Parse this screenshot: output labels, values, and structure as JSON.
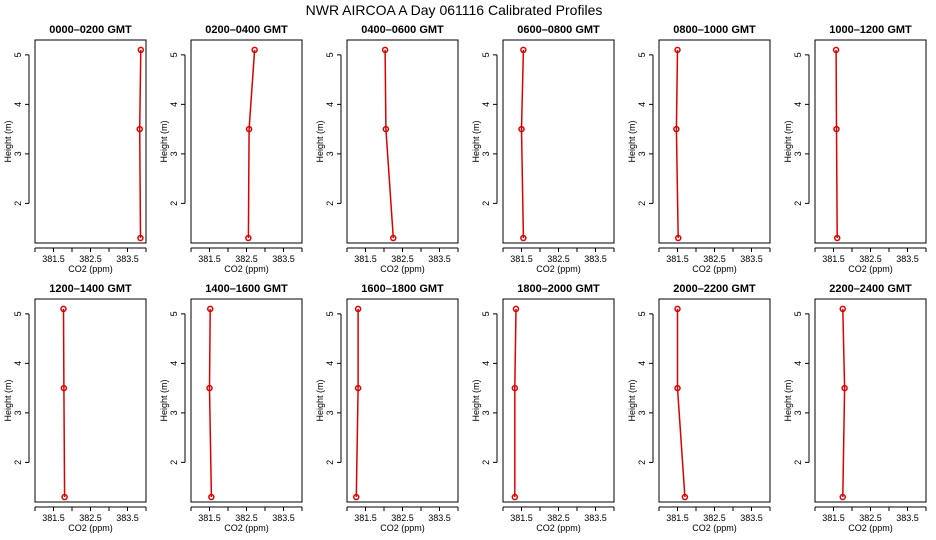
{
  "figure": {
    "title": "NWR AIRCOA A  Day 061116  Calibrated Profiles"
  },
  "chart_data": [
    {
      "type": "line",
      "title": "0000–0200 GMT",
      "xlabel": "CO2 (ppm)",
      "ylabel": "Height (m)",
      "xlim": [
        381.0,
        384.0
      ],
      "ylim": [
        1.2,
        5.3
      ],
      "xticks": [
        381.5,
        382.5,
        383.5
      ],
      "yticks": [
        2,
        3,
        4,
        5
      ],
      "series": [
        {
          "x": [
            383.85,
            383.83,
            383.86
          ],
          "y": [
            1.3,
            3.5,
            5.1
          ]
        }
      ]
    },
    {
      "type": "line",
      "title": "0200–0400 GMT",
      "xlabel": "CO2 (ppm)",
      "ylabel": "Height (m)",
      "xlim": [
        381.0,
        384.0
      ],
      "ylim": [
        1.2,
        5.3
      ],
      "xticks": [
        381.5,
        382.5,
        383.5
      ],
      "yticks": [
        2,
        3,
        4,
        5
      ],
      "series": [
        {
          "x": [
            382.55,
            382.57,
            382.72
          ],
          "y": [
            1.3,
            3.5,
            5.1
          ]
        }
      ]
    },
    {
      "type": "line",
      "title": "0400–0600 GMT",
      "xlabel": "CO2 (ppm)",
      "ylabel": "Height (m)",
      "xlim": [
        381.0,
        384.0
      ],
      "ylim": [
        1.2,
        5.3
      ],
      "xticks": [
        381.5,
        382.5,
        383.5
      ],
      "yticks": [
        2,
        3,
        4,
        5
      ],
      "series": [
        {
          "x": [
            382.25,
            382.05,
            382.03
          ],
          "y": [
            1.3,
            3.5,
            5.1
          ]
        }
      ]
    },
    {
      "type": "line",
      "title": "0600–0800 GMT",
      "xlabel": "CO2 (ppm)",
      "ylabel": "Height (m)",
      "xlim": [
        381.0,
        384.0
      ],
      "ylim": [
        1.2,
        5.3
      ],
      "xticks": [
        381.5,
        382.5,
        383.5
      ],
      "yticks": [
        2,
        3,
        4,
        5
      ],
      "series": [
        {
          "x": [
            381.55,
            381.5,
            381.55
          ],
          "y": [
            1.3,
            3.5,
            5.1
          ]
        }
      ]
    },
    {
      "type": "line",
      "title": "0800–1000 GMT",
      "xlabel": "CO2 (ppm)",
      "ylabel": "Height (m)",
      "xlim": [
        381.0,
        384.0
      ],
      "ylim": [
        1.2,
        5.3
      ],
      "xticks": [
        381.5,
        382.5,
        383.5
      ],
      "yticks": [
        2,
        3,
        4,
        5
      ],
      "series": [
        {
          "x": [
            381.52,
            381.47,
            381.5
          ],
          "y": [
            1.3,
            3.5,
            5.1
          ]
        }
      ]
    },
    {
      "type": "line",
      "title": "1000–1200 GMT",
      "xlabel": "CO2 (ppm)",
      "ylabel": "Height (m)",
      "xlim": [
        381.0,
        384.0
      ],
      "ylim": [
        1.2,
        5.3
      ],
      "xticks": [
        381.5,
        382.5,
        383.5
      ],
      "yticks": [
        2,
        3,
        4,
        5
      ],
      "series": [
        {
          "x": [
            381.6,
            381.58,
            381.57
          ],
          "y": [
            1.3,
            3.5,
            5.1
          ]
        }
      ]
    },
    {
      "type": "line",
      "title": "1200–1400 GMT",
      "xlabel": "CO2 (ppm)",
      "ylabel": "Height (m)",
      "xlim": [
        381.0,
        384.0
      ],
      "ylim": [
        1.2,
        5.3
      ],
      "xticks": [
        381.5,
        382.5,
        383.5
      ],
      "yticks": [
        2,
        3,
        4,
        5
      ],
      "series": [
        {
          "x": [
            381.8,
            381.78,
            381.77
          ],
          "y": [
            1.3,
            3.5,
            5.1
          ]
        }
      ]
    },
    {
      "type": "line",
      "title": "1400–1600 GMT",
      "xlabel": "CO2 (ppm)",
      "ylabel": "Height (m)",
      "xlim": [
        381.0,
        384.0
      ],
      "ylim": [
        1.2,
        5.3
      ],
      "xticks": [
        381.5,
        382.5,
        383.5
      ],
      "yticks": [
        2,
        3,
        4,
        5
      ],
      "series": [
        {
          "x": [
            381.55,
            381.5,
            381.52
          ],
          "y": [
            1.3,
            3.5,
            5.1
          ]
        }
      ]
    },
    {
      "type": "line",
      "title": "1600–1800 GMT",
      "xlabel": "CO2 (ppm)",
      "ylabel": "Height (m)",
      "xlim": [
        381.0,
        384.0
      ],
      "ylim": [
        1.2,
        5.3
      ],
      "xticks": [
        381.5,
        382.5,
        383.5
      ],
      "yticks": [
        2,
        3,
        4,
        5
      ],
      "series": [
        {
          "x": [
            381.25,
            381.3,
            381.3
          ],
          "y": [
            1.3,
            3.5,
            5.1
          ]
        }
      ]
    },
    {
      "type": "line",
      "title": "1800–2000 GMT",
      "xlabel": "CO2 (ppm)",
      "ylabel": "Height (m)",
      "xlim": [
        381.0,
        384.0
      ],
      "ylim": [
        1.2,
        5.3
      ],
      "xticks": [
        381.5,
        382.5,
        383.5
      ],
      "yticks": [
        2,
        3,
        4,
        5
      ],
      "series": [
        {
          "x": [
            381.32,
            381.32,
            381.35
          ],
          "y": [
            1.3,
            3.5,
            5.1
          ]
        }
      ]
    },
    {
      "type": "line",
      "title": "2000–2200 GMT",
      "xlabel": "CO2 (ppm)",
      "ylabel": "Height (m)",
      "xlim": [
        381.0,
        384.0
      ],
      "ylim": [
        1.2,
        5.3
      ],
      "xticks": [
        381.5,
        382.5,
        383.5
      ],
      "yticks": [
        2,
        3,
        4,
        5
      ],
      "series": [
        {
          "x": [
            381.7,
            381.5,
            381.5
          ],
          "y": [
            1.3,
            3.5,
            5.1
          ]
        }
      ]
    },
    {
      "type": "line",
      "title": "2200–2400 GMT",
      "xlabel": "CO2 (ppm)",
      "ylabel": "Height (m)",
      "xlim": [
        381.0,
        384.0
      ],
      "ylim": [
        1.2,
        5.3
      ],
      "xticks": [
        381.5,
        382.5,
        383.5
      ],
      "yticks": [
        2,
        3,
        4,
        5
      ],
      "series": [
        {
          "x": [
            381.75,
            381.8,
            381.75
          ],
          "y": [
            1.3,
            3.5,
            5.1
          ]
        }
      ]
    }
  ]
}
